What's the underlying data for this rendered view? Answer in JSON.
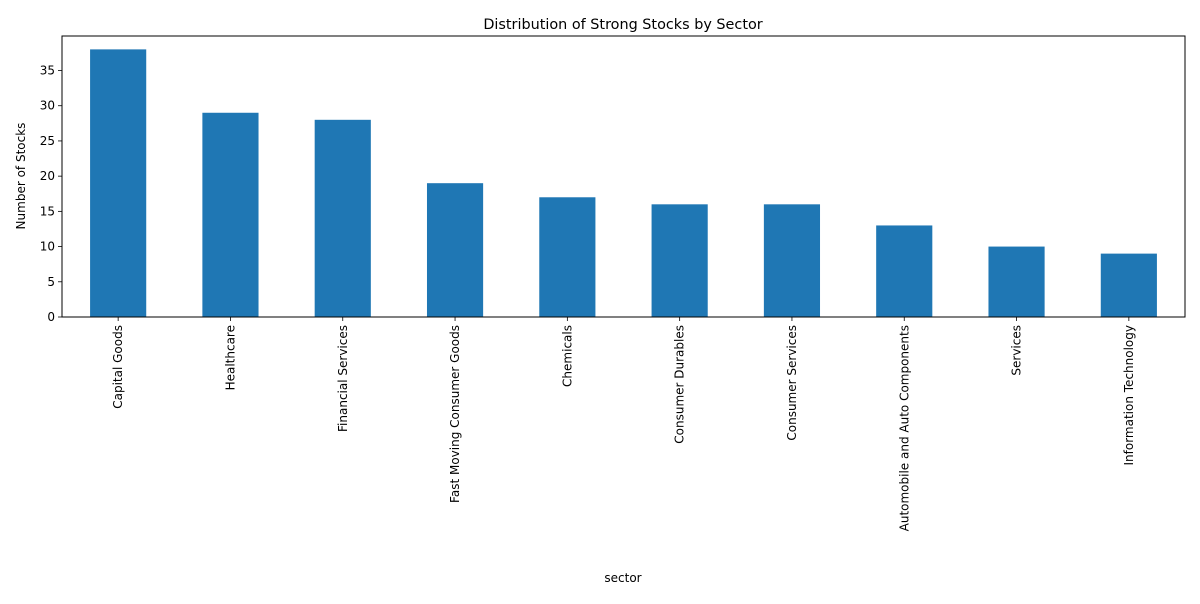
{
  "chart_data": {
    "type": "bar",
    "title": "Distribution of Strong Stocks by Sector",
    "xlabel": "sector",
    "ylabel": "Number of Stocks",
    "categories": [
      "Capital Goods",
      "Healthcare",
      "Financial Services",
      "Fast Moving Consumer Goods",
      "Chemicals",
      "Consumer Durables",
      "Consumer Services",
      "Automobile and Auto Components",
      "Services",
      "Information Technology"
    ],
    "values": [
      38,
      29,
      28,
      19,
      17,
      16,
      16,
      13,
      10,
      9
    ],
    "ylim": [
      0,
      39.9
    ],
    "yticks": [
      0,
      5,
      10,
      15,
      20,
      25,
      30,
      35
    ],
    "grid": false,
    "legend": "none",
    "bar_color": "#1f77b4"
  }
}
